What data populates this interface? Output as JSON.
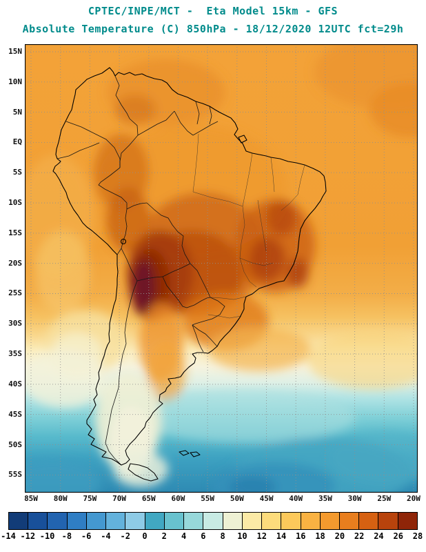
{
  "header": {
    "line1": "CPTEC/INPE/MCT -  Eta Model 15km - GFS",
    "line2": "Absolute Temperature (C) 850hPa - 18/12/2020 12UTC fct=29h"
  },
  "map": {
    "lat_labels": [
      "15N",
      "10N",
      "5N",
      "EQ",
      "5S",
      "10S",
      "15S",
      "20S",
      "25S",
      "30S",
      "35S",
      "40S",
      "45S",
      "50S",
      "55S"
    ],
    "lon_labels": [
      "85W",
      "80W",
      "75W",
      "70W",
      "65W",
      "60W",
      "55W",
      "50W",
      "45W",
      "40W",
      "35W",
      "30W",
      "25W",
      "20W"
    ]
  },
  "colorbar": {
    "tick_labels": [
      "-14",
      "-12",
      "-10",
      "-8",
      "-6",
      "-4",
      "-2",
      "0",
      "2",
      "4",
      "6",
      "8",
      "10",
      "12",
      "14",
      "16",
      "18",
      "20",
      "22",
      "24",
      "26",
      "28"
    ],
    "cell_colors": [
      "#123c78",
      "#18509a",
      "#2264b0",
      "#2f7ec4",
      "#4498d0",
      "#63b2dc",
      "#8ecbe6",
      "#41a8c2",
      "#68c2ce",
      "#97d8da",
      "#c8ebe4",
      "#eef1d4",
      "#fbeaa6",
      "#fcdc7c",
      "#fcc95b",
      "#f9b242",
      "#f49a2e",
      "#e87e1e",
      "#d66112",
      "#b8430c",
      "#8f2508"
    ]
  },
  "colors": {
    "title_text": "#008b8b",
    "axis_text": "#101010",
    "hot_core": "#6e1226",
    "cold_ocean": "#2e8ab3"
  },
  "chart_data": {
    "type": "heatmap",
    "title": "CPTEC/INPE/MCT -  Eta Model 15km - GFS",
    "subtitle": "Absolute Temperature (C) 850hPa - 18/12/2020 12UTC fct=29h",
    "variable": "Absolute Temperature",
    "units": "C",
    "level": "850hPa",
    "model": "Eta Model 15km",
    "boundary_condition": "GFS",
    "valid": "18/12/2020 12UTC",
    "forecast_hour": "29h",
    "lat_range": [
      "15N",
      "55S"
    ],
    "lon_range": [
      "85W",
      "20W"
    ],
    "colorbar_boundaries": [
      -14,
      -12,
      -10,
      -8,
      -6,
      -4,
      -2,
      0,
      2,
      4,
      6,
      8,
      10,
      12,
      14,
      16,
      18,
      20,
      22,
      24,
      26,
      28
    ],
    "field_summary": "Warm (18-28C) orange/red over tropical South America with maximum dark-red core near Bolivia/NW Argentina (~20-25S, 65W); yellow band 30-38S; pale 8-10C over Patagonia; cyan/teal cold ocean (0-6C) south of 42S, coldest in far south."
  }
}
